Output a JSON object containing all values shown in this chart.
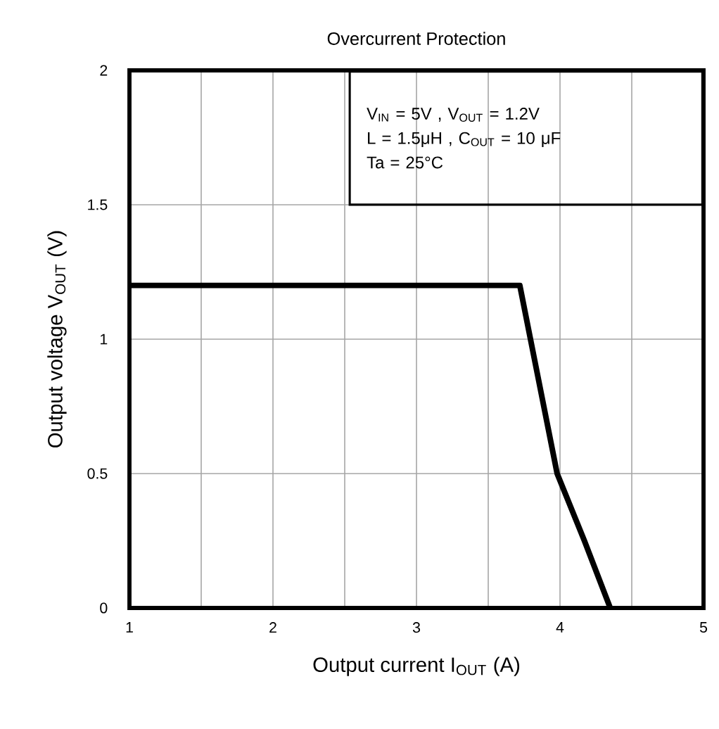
{
  "chart_data": {
    "type": "line",
    "title": "Overcurrent Protection",
    "xlabel": "Output current   I$_{OUT}$   (A)",
    "ylabel": "Output voltage   V$_{OUT}$   (V)",
    "annotations": [
      "V$_{IN}$ = 5V , V$_{OUT}$ = 1.2V",
      "L = 1.5μH , C$_{OUT}$ = 10 μF",
      "Ta = 25°C"
    ],
    "x": [
      1,
      3.72,
      3.85,
      3.98,
      4.17,
      4.35
    ],
    "series": [
      {
        "color": "#000000",
        "values": [
          1.2,
          1.2,
          0.85,
          0.5,
          0.25,
          0
        ]
      }
    ],
    "xlim": [
      1,
      5
    ],
    "ylim": [
      0,
      2
    ],
    "xticks": [
      1,
      {
        "value": 1.5,
        "label": null
      },
      2,
      {
        "value": 2.5,
        "label": null
      },
      3,
      {
        "value": 3.5,
        "label": null
      },
      4,
      {
        "value": 4.5,
        "label": null
      },
      5
    ],
    "yticks": [
      0,
      0.5,
      1,
      1.5,
      2
    ],
    "grid": true,
    "marker": "none",
    "line_style": "solid"
  }
}
